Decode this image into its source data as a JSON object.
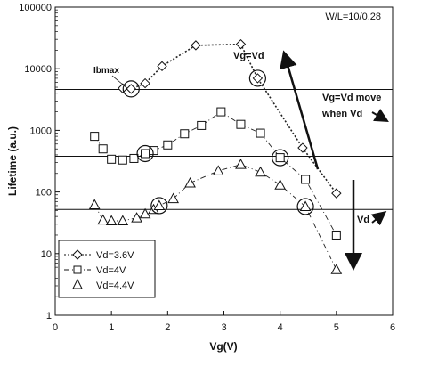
{
  "chart_data": {
    "type": "scatter",
    "title": "",
    "xlabel": "Vg(V)",
    "ylabel": "Lifetime (a.u.)",
    "xlim": [
      0,
      6
    ],
    "ylim": [
      1,
      100000
    ],
    "yscale": "log",
    "xticks": [
      "0",
      "1",
      "2",
      "3",
      "4",
      "5",
      "6"
    ],
    "yticks": [
      "1",
      "10",
      "100",
      "1000",
      "10000",
      "100000"
    ],
    "grid": false,
    "legend_position": "bottom-left",
    "annotations": {
      "ratio": "W/L=10/0.28",
      "ibmax": "Ibmax",
      "vg_eq_vd": "Vg=Vd",
      "move_line1": "Vg=Vd move",
      "move_line2": "when Vd",
      "vd_arrow": "Vd"
    },
    "reference_lines": [
      4600,
      380,
      52
    ],
    "series": [
      {
        "name": "Vd=3.6V",
        "marker": "diamond",
        "line_style": "dotted",
        "x": [
          1.2,
          1.35,
          1.6,
          1.9,
          2.5,
          3.3,
          3.6,
          4.4,
          5.0
        ],
        "y": [
          4800,
          4700,
          5800,
          11000,
          24000,
          25000,
          7000,
          520,
          95
        ]
      },
      {
        "name": "Vd=4V",
        "marker": "square",
        "line_style": "dash-dot",
        "x": [
          0.7,
          0.85,
          1.0,
          1.2,
          1.4,
          1.6,
          1.75,
          2.0,
          2.3,
          2.6,
          2.95,
          3.3,
          3.65,
          4.0,
          4.45,
          5.0
        ],
        "y": [
          800,
          500,
          340,
          330,
          350,
          420,
          470,
          580,
          880,
          1200,
          2000,
          1250,
          900,
          360,
          160,
          20
        ]
      },
      {
        "name": "Vd=4.4V",
        "marker": "triangle",
        "line_style": "dash-dot",
        "x": [
          0.7,
          0.85,
          1.0,
          1.2,
          1.45,
          1.6,
          1.75,
          1.85,
          2.1,
          2.4,
          2.9,
          3.3,
          3.65,
          4.0,
          4.45,
          5.0
        ],
        "y": [
          62,
          35,
          34,
          34,
          38,
          44,
          52,
          60,
          78,
          140,
          220,
          280,
          210,
          130,
          58,
          5.5
        ]
      }
    ]
  }
}
